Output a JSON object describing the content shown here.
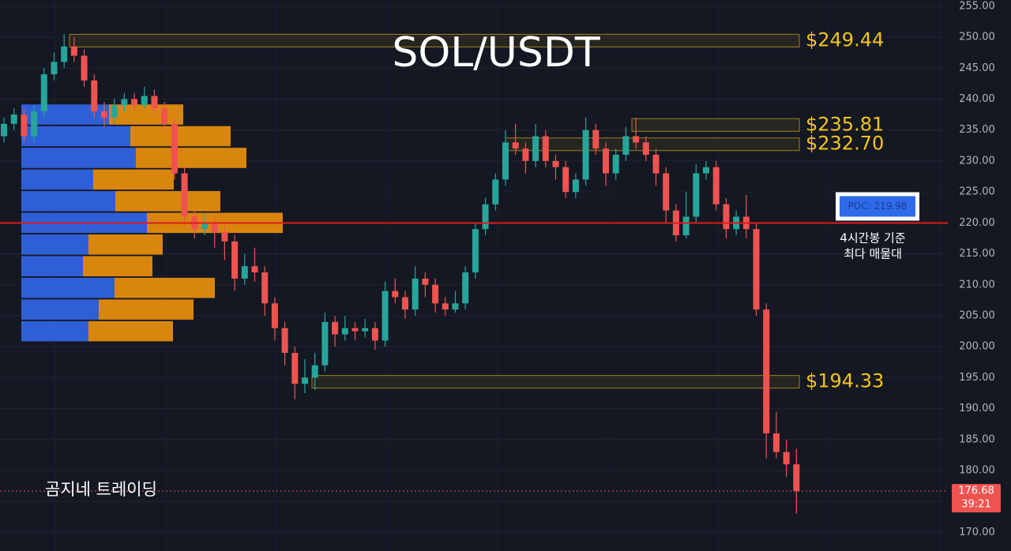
{
  "chart_data": {
    "type": "candlestick",
    "title": "SOL/USDT",
    "ylim": [
      167,
      256
    ],
    "yticks": [
      {
        "value": 255,
        "label": "255.00"
      },
      {
        "value": 250,
        "label": "250.00"
      },
      {
        "value": 245,
        "label": "245.00"
      },
      {
        "value": 240,
        "label": "240.00"
      },
      {
        "value": 235,
        "label": "235.00"
      },
      {
        "value": 230,
        "label": "230.00"
      },
      {
        "value": 225,
        "label": "225.00"
      },
      {
        "value": 220,
        "label": "220.00"
      },
      {
        "value": 215,
        "label": "215.00"
      },
      {
        "value": 210,
        "label": "210.00"
      },
      {
        "value": 205,
        "label": "205.00"
      },
      {
        "value": 200,
        "label": "200.00"
      },
      {
        "value": 195,
        "label": "195.00"
      },
      {
        "value": 190,
        "label": "190.00"
      },
      {
        "value": 185,
        "label": "185.00"
      },
      {
        "value": 180,
        "label": "180.00"
      },
      {
        "value": 175,
        "label": "175.00"
      },
      {
        "value": 170,
        "label": "170.00"
      }
    ],
    "grid": true,
    "up_color": "#26a69a",
    "down_color": "#ef5350",
    "open": [
      234,
      236,
      237.5,
      234,
      238,
      244,
      246,
      248.5,
      247,
      243,
      238,
      237,
      239,
      240,
      239,
      240.5,
      238.5,
      236,
      228,
      221,
      219,
      220,
      218.5,
      217,
      211,
      213,
      212,
      207,
      203,
      199,
      194,
      195,
      197,
      204,
      202,
      203,
      202.5,
      203,
      201,
      209,
      208,
      206,
      211,
      210,
      207,
      206,
      207,
      212,
      219,
      223,
      227,
      233,
      232,
      230,
      234,
      230,
      229,
      225,
      227,
      235,
      232,
      228,
      231,
      234,
      233,
      231,
      228,
      222,
      218,
      221,
      228,
      229,
      223,
      219,
      221,
      219,
      206,
      186,
      183,
      181
    ],
    "high": [
      237,
      238.5,
      238.5,
      239,
      245,
      247.5,
      250.5,
      250,
      248,
      244,
      239.5,
      240,
      241,
      241,
      242,
      241.5,
      239.5,
      237,
      229,
      222,
      221.5,
      221,
      219.5,
      218,
      215,
      216,
      213,
      208,
      204,
      200,
      198,
      199,
      205.5,
      205,
      205,
      204,
      204.5,
      204,
      210.5,
      211,
      209,
      213,
      212,
      211,
      208,
      209,
      213,
      220,
      224,
      228,
      235,
      236,
      233,
      236,
      235,
      231,
      230,
      228,
      237,
      236,
      233,
      232,
      235.5,
      237,
      234,
      232,
      229,
      223,
      225,
      229.5,
      230,
      230,
      224,
      222,
      224.5,
      220,
      207,
      189.5,
      185,
      183.5
    ],
    "low": [
      233,
      235,
      233,
      233,
      237,
      243,
      245,
      246,
      242,
      237,
      235.5,
      236,
      238,
      238,
      238.5,
      237.5,
      235,
      227,
      219.5,
      217.5,
      218,
      216,
      214,
      209,
      210,
      210.5,
      205,
      201,
      197,
      191.5,
      192.5,
      193,
      196,
      200,
      201,
      201,
      201.5,
      199.5,
      200,
      207,
      204.5,
      205,
      208,
      205.5,
      205,
      205.5,
      206,
      211,
      218,
      222,
      226,
      231,
      228,
      229,
      229,
      227,
      224,
      224,
      226,
      231,
      226,
      227,
      230,
      232,
      230,
      226,
      220,
      217,
      217.5,
      220,
      227,
      222,
      217.5,
      218,
      217.5,
      205,
      182,
      182,
      179,
      173
    ],
    "close": [
      236,
      237.5,
      234,
      238,
      244,
      246,
      248.5,
      247,
      243,
      238,
      237,
      239,
      240,
      239,
      240.5,
      238.5,
      236,
      228,
      221,
      219,
      220,
      218.5,
      217,
      211,
      213,
      212,
      207,
      203,
      199,
      194,
      195,
      197,
      204,
      202,
      203,
      202.5,
      203,
      201,
      209,
      208,
      206,
      211,
      210,
      207,
      206,
      207,
      212,
      219,
      223,
      227,
      233,
      232,
      230,
      234,
      230,
      229,
      225,
      227,
      235,
      232,
      228,
      231,
      234,
      233,
      231,
      228,
      222,
      218,
      221,
      228,
      229,
      223,
      219,
      221,
      219,
      206,
      186,
      183,
      181,
      176.68
    ],
    "levels": [
      {
        "value": 249.44,
        "label": "$249.44"
      },
      {
        "value": 235.81,
        "label": "$235.81"
      },
      {
        "value": 232.7,
        "label": "$232.70"
      },
      {
        "value": 194.33,
        "label": "$194.33"
      }
    ],
    "level_color": "#f5c518",
    "poc": {
      "value": 219.98,
      "label": "POC: 219.98",
      "color": "#e01b1b"
    },
    "annotations": [
      "4시간봉 기준",
      "최다 매물대"
    ],
    "last_price": {
      "value": 176.68,
      "label": "176.68",
      "countdown": "39:21"
    },
    "watermark": "곰지네 트레이딩",
    "volume_profile": {
      "prices": [
        237.5,
        234,
        230.5,
        227,
        223.5,
        220,
        216.5,
        213,
        209.5,
        206,
        202.5
      ],
      "buy": [
        111,
        138,
        145,
        91,
        119,
        159,
        85,
        78,
        118,
        98,
        85
      ],
      "sell": [
        94,
        127,
        140,
        102,
        133,
        172,
        94,
        88,
        127,
        120,
        107
      ],
      "buy_color": "#2f5fd6",
      "sell_color": "#d9860f"
    }
  }
}
